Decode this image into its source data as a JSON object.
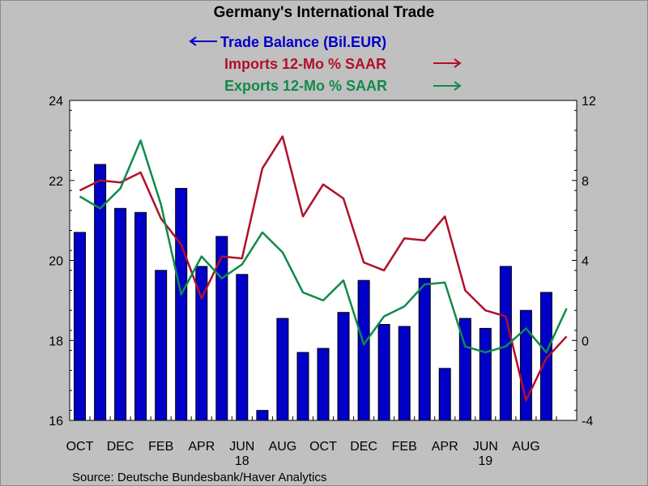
{
  "chart_data": {
    "type": "bar",
    "title": "Germany's International Trade",
    "source": "Source:  Deutsche Bundesbank/Haver Analytics",
    "x_tick_labels": [
      "OCT",
      "DEC",
      "FEB",
      "APR",
      "JUN",
      "AUG",
      "OCT",
      "DEC",
      "FEB",
      "APR",
      "JUN",
      "AUG"
    ],
    "year_labels": [
      {
        "label": "18",
        "under": "JUN"
      },
      {
        "label": "19",
        "under": "JUN"
      }
    ],
    "left_axis": {
      "ylim": [
        16,
        24
      ],
      "ticks": [
        "16",
        "18",
        "20",
        "22",
        "24"
      ]
    },
    "right_axis": {
      "ylim": [
        -4,
        12
      ],
      "ticks": [
        "-4",
        "0",
        "4",
        "8",
        "12"
      ]
    },
    "grid": false,
    "legend_placement": "top-center",
    "series": [
      {
        "name": "Trade Balance (Bil.EUR)",
        "type": "bar",
        "axis": "left",
        "color": "#0000c8",
        "values": [
          20.7,
          22.4,
          21.3,
          21.2,
          19.75,
          21.8,
          19.85,
          20.6,
          19.65,
          16.25,
          18.55,
          17.7,
          17.8,
          18.7,
          19.5,
          18.4,
          18.35,
          19.55,
          17.3,
          18.55,
          18.3,
          19.85,
          18.75,
          19.2
        ]
      },
      {
        "name": "Imports 12-Mo % SAAR",
        "type": "line",
        "axis": "right",
        "color": "#b0102a",
        "values": [
          7.5,
          8.0,
          7.9,
          8.4,
          6.1,
          4.8,
          2.1,
          4.2,
          4.1,
          8.6,
          10.2,
          6.2,
          7.8,
          7.1,
          3.9,
          3.5,
          5.1,
          5.0,
          6.2,
          2.5,
          1.5,
          1.2,
          -3.0,
          -0.9,
          0.2
        ]
      },
      {
        "name": "Exports 12-Mo % SAAR",
        "type": "line",
        "axis": "right",
        "color": "#108a4a",
        "values": [
          7.2,
          6.6,
          7.6,
          10.0,
          6.8,
          2.3,
          4.2,
          3.1,
          3.8,
          5.4,
          4.4,
          2.4,
          2.0,
          3.0,
          -0.2,
          1.2,
          1.7,
          2.8,
          2.9,
          -0.3,
          -0.6,
          -0.3,
          0.6,
          -0.6,
          1.6
        ]
      }
    ]
  }
}
